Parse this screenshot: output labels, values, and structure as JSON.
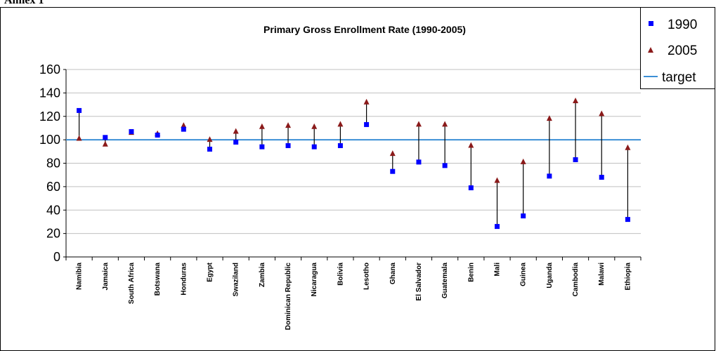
{
  "header_text": "Annex 1",
  "chart_data": {
    "type": "scatter",
    "title": "Primary Gross Enrollment Rate (1990-2005)",
    "xlabel": "",
    "ylabel": "",
    "ylim": [
      0,
      160
    ],
    "yticks": [
      0,
      20,
      40,
      60,
      80,
      100,
      120,
      140,
      160
    ],
    "grid": true,
    "legend_position": "top-right",
    "target": 100,
    "categories": [
      "Namibia",
      "Jamaica",
      "South Africa",
      "Botswana",
      "Honduras",
      "Egypt",
      "Swaziland",
      "Zambia",
      "Dominican Republic",
      "Nicaragua",
      "Bolivia",
      "Lesotho",
      "Ghana",
      "El Salvador",
      "Guatemala",
      "Benin",
      "Mali",
      "Guinea",
      "Uganda",
      "Cambodia",
      "Malawi",
      "Ethiopia"
    ],
    "series": [
      {
        "name": "1990",
        "color": "#0000ff",
        "marker": "square",
        "values": [
          125,
          102,
          107,
          104,
          109,
          92,
          98,
          94,
          95,
          94,
          95,
          113,
          73,
          81,
          78,
          59,
          26,
          35,
          69,
          83,
          68,
          32
        ]
      },
      {
        "name": "2005",
        "color": "#8b1a1a",
        "marker": "triangle",
        "values": [
          101,
          96,
          106,
          105,
          112,
          100,
          107,
          111,
          112,
          111,
          113,
          132,
          88,
          113,
          113,
          95,
          65,
          81,
          118,
          133,
          122,
          93
        ]
      },
      {
        "name": "target",
        "color": "#3c8fd6",
        "marker": "line"
      }
    ]
  }
}
